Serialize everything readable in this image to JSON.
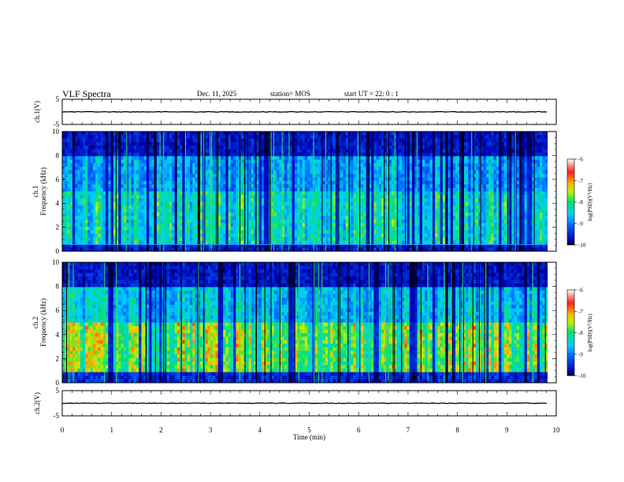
{
  "header": {
    "title": "VLF Spectra",
    "date": "Dec. 11, 2025",
    "station": "station= MOS",
    "start": "start  UT  =   22: 0   : 1"
  },
  "chart_data": [
    {
      "type": "line",
      "name": "ch1-waveform",
      "ylabel": "ch.1(V)",
      "ylim": [
        -5,
        5
      ],
      "yticks": [
        "5",
        "-5"
      ],
      "level": 0
    },
    {
      "type": "heatmap",
      "name": "ch1-spectrogram",
      "ylabel_top": "ch.1",
      "ylabel": "Frequency (kHz)",
      "ylim": [
        0,
        10
      ],
      "yticks": [
        "0",
        "2",
        "4",
        "6",
        "8",
        "10"
      ],
      "xlim": [
        0,
        10
      ],
      "data_end_min": 9.82,
      "colorbar": {
        "label": "log(PSD)(V²/Hz)",
        "range": [
          -10,
          -6
        ],
        "ticks": [
          "-6",
          "-7",
          "-8",
          "-9",
          "-10"
        ]
      }
    },
    {
      "type": "heatmap",
      "name": "ch2-spectrogram",
      "ylabel_top": "ch.2",
      "ylabel": "Frequency (kHz)",
      "ylim": [
        0,
        10
      ],
      "yticks": [
        "0",
        "2",
        "4",
        "6",
        "8",
        "10"
      ],
      "xlim": [
        0,
        10
      ],
      "data_end_min": 9.82,
      "colorbar": {
        "label": "log(PSD)(V²/Hz)",
        "range": [
          -10,
          -6
        ],
        "ticks": [
          "-6",
          "-7",
          "-8",
          "-9",
          "-10"
        ]
      }
    },
    {
      "type": "line",
      "name": "ch2-waveform",
      "ylabel": "ch.2(V)",
      "ylim": [
        -5,
        5
      ],
      "yticks": [
        "5",
        "-5"
      ],
      "level": 0
    }
  ],
  "xaxis": {
    "label": "Time  (min)",
    "ticks": [
      "0",
      "1",
      "2",
      "3",
      "4",
      "5",
      "6",
      "7",
      "8",
      "9",
      "10"
    ],
    "range": [
      0,
      10
    ]
  },
  "colors": {
    "frame": "#000000",
    "background": "#ffffff"
  }
}
